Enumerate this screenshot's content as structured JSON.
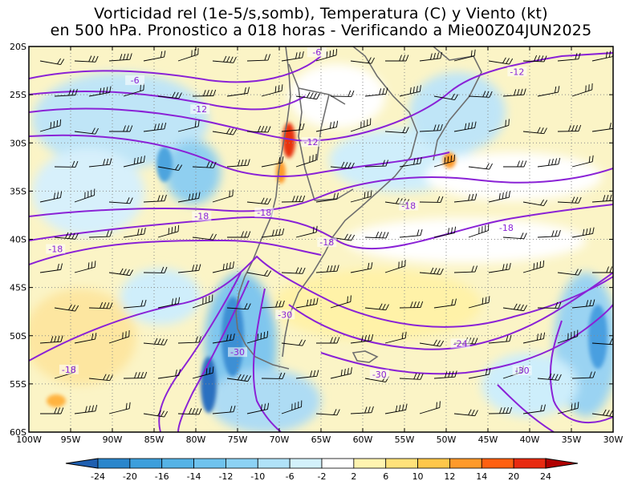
{
  "title": {
    "line1": "Vorticidad rel (1e-5/s,somb), Temperatura (C) y Viento (kt)",
    "line2": "en 500 hPa. Pronostico a 018 horas - Verificando a Mie00Z04JUN2025"
  },
  "map": {
    "lon_range": [
      -100,
      -30
    ],
    "lat_range": [
      -60,
      -20
    ],
    "x_ticks": [
      {
        "label": "100W",
        "lon": -100
      },
      {
        "label": "95W",
        "lon": -95
      },
      {
        "label": "90W",
        "lon": -90
      },
      {
        "label": "85W",
        "lon": -85
      },
      {
        "label": "80W",
        "lon": -80
      },
      {
        "label": "75W",
        "lon": -75
      },
      {
        "label": "70W",
        "lon": -70
      },
      {
        "label": "65W",
        "lon": -65
      },
      {
        "label": "60W",
        "lon": -60
      },
      {
        "label": "55W",
        "lon": -55
      },
      {
        "label": "50W",
        "lon": -50
      },
      {
        "label": "45W",
        "lon": -45
      },
      {
        "label": "40W",
        "lon": -40
      },
      {
        "label": "35W",
        "lon": -35
      },
      {
        "label": "30W",
        "lon": -30
      }
    ],
    "y_ticks": [
      {
        "label": "20S",
        "lat": -20
      },
      {
        "label": "25S",
        "lat": -25
      },
      {
        "label": "30S",
        "lat": -30
      },
      {
        "label": "35S",
        "lat": -35
      },
      {
        "label": "40S",
        "lat": -40
      },
      {
        "label": "45S",
        "lat": -45
      },
      {
        "label": "50S",
        "lat": -50
      },
      {
        "label": "55S",
        "lat": -55
      },
      {
        "label": "60S",
        "lat": -60
      }
    ],
    "isotherm_labels": [
      {
        "text": "-6",
        "lon": -65.5,
        "lat": -20.6
      },
      {
        "text": "-6",
        "lon": -87.3,
        "lat": -23.5
      },
      {
        "text": "-12",
        "lon": -41.5,
        "lat": -22.6
      },
      {
        "text": "-12",
        "lon": -79.5,
        "lat": -26.5
      },
      {
        "text": "-12",
        "lon": -66.2,
        "lat": -29.9
      },
      {
        "text": "-18",
        "lon": -79.3,
        "lat": -37.6
      },
      {
        "text": "-18",
        "lon": -71.8,
        "lat": -37.2
      },
      {
        "text": "-18",
        "lon": -54.5,
        "lat": -36.5
      },
      {
        "text": "-18",
        "lon": -42.8,
        "lat": -38.8
      },
      {
        "text": "-18",
        "lon": -96.8,
        "lat": -41.0
      },
      {
        "text": "-18",
        "lon": -64.3,
        "lat": -40.3
      },
      {
        "text": "-18",
        "lon": -95.2,
        "lat": -53.5
      },
      {
        "text": "-30",
        "lon": -69.3,
        "lat": -47.8
      },
      {
        "text": "-30",
        "lon": -75.0,
        "lat": -51.7
      },
      {
        "text": "-30",
        "lon": -58.0,
        "lat": -54.0
      },
      {
        "text": "-30",
        "lon": -40.9,
        "lat": -53.6
      },
      {
        "text": "-24",
        "lon": -48.3,
        "lat": -50.8
      }
    ]
  },
  "colorbar": {
    "labels": [
      "-24",
      "-20",
      "-16",
      "-14",
      "-12",
      "-10",
      "-6",
      "-2",
      "2",
      "6",
      "10",
      "12",
      "14",
      "20",
      "24"
    ],
    "colors": [
      "#1f5fb0",
      "#2a86cc",
      "#3d9fdc",
      "#55b3e6",
      "#6fc3ee",
      "#8cd2f4",
      "#b0e2f8",
      "#d3f1fb",
      "#ffffff",
      "#fff4b0",
      "#ffe27a",
      "#ffc74a",
      "#ff9a2a",
      "#ff6010",
      "#e82a10",
      "#b00000"
    ]
  }
}
